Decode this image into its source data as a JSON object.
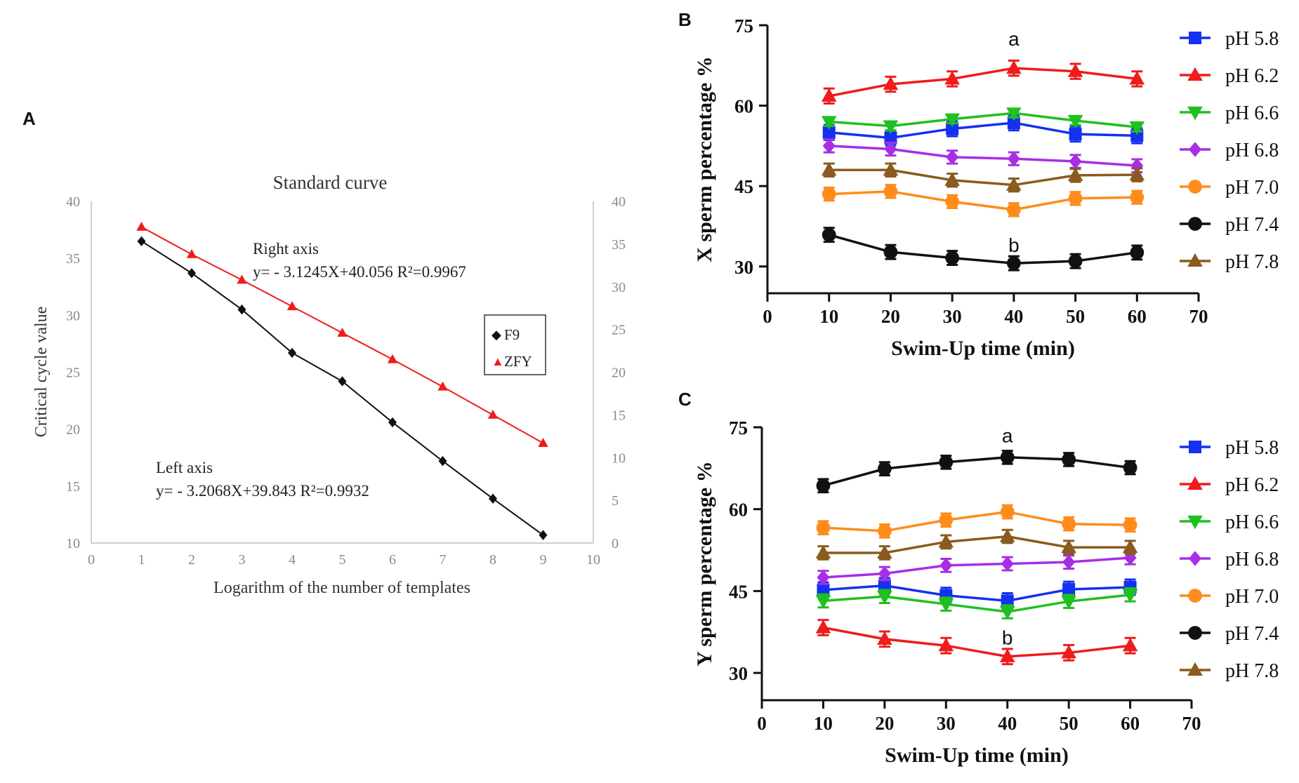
{
  "colors": {
    "blue": "#1430f0",
    "red": "#ee1c1c",
    "green": "#1fc01f",
    "purple": "#a62fe6",
    "orange": "#ff8c1a",
    "black": "#111111",
    "brown": "#8b5a1e"
  },
  "chart_data": [
    {
      "panel": "A",
      "type": "scatter",
      "title": "Standard curve",
      "xlabel": "Logarithm of the number of templates",
      "ylabel": "Critical cycle value",
      "xlim": [
        0,
        10
      ],
      "ylim_left": [
        10,
        40
      ],
      "ylim_right": [
        0,
        40
      ],
      "x_ticks": [
        "0",
        "1",
        "2",
        "3",
        "4",
        "5",
        "6",
        "7",
        "8",
        "9",
        "10"
      ],
      "y_left_ticks": [
        "10",
        "15",
        "20",
        "25",
        "30",
        "35",
        "40"
      ],
      "y_right_ticks": [
        "0",
        "5",
        "10",
        "15",
        "20",
        "25",
        "30",
        "35",
        "40"
      ],
      "legend": [
        "F9",
        "ZFY"
      ],
      "legend_markers": [
        "◆",
        "▲"
      ],
      "series": [
        {
          "name": "F9",
          "axis": "left",
          "color": "#111111",
          "marker": "diamond",
          "x": [
            1,
            2,
            3,
            4,
            5,
            6,
            7,
            8,
            9
          ],
          "y": [
            36.5,
            33.7,
            30.5,
            26.7,
            24.2,
            20.6,
            17.2,
            13.9,
            10.7
          ]
        },
        {
          "name": "ZFY",
          "axis": "right",
          "color": "#ee1c1c",
          "marker": "triangle",
          "x": [
            1,
            2,
            3,
            4,
            5,
            6,
            7,
            8,
            9
          ],
          "y": [
            37.0,
            33.8,
            30.8,
            27.7,
            24.6,
            21.5,
            18.3,
            15.0,
            11.7
          ]
        }
      ],
      "annotations": {
        "right_title": "Right axis",
        "right_eq": "y= - 3.1245X+40.056 R²=0.9967",
        "left_title": "Left axis",
        "left_eq": "y= - 3.2068X+39.843 R²=0.9932"
      }
    },
    {
      "panel": "B",
      "type": "line",
      "xlabel": "Swim-Up time (min)",
      "ylabel": "X sperm percentage %",
      "xlim": [
        0,
        70
      ],
      "ylim": [
        25,
        75
      ],
      "x_ticks": [
        "0",
        "10",
        "20",
        "30",
        "40",
        "50",
        "60",
        "70"
      ],
      "y_ticks": [
        "30",
        "45",
        "60",
        "75"
      ],
      "x": [
        10,
        20,
        30,
        40,
        50,
        60
      ],
      "annotations": [
        {
          "text": "a",
          "x": 40,
          "y": 72.5
        },
        {
          "text": "b",
          "x": 40,
          "y": 34
        }
      ],
      "series": [
        {
          "name": "pH 5.8",
          "color": "#1430f0",
          "marker": "square",
          "values": [
            55.0,
            54.0,
            55.7,
            56.8,
            54.7,
            54.4
          ],
          "err": 1.4
        },
        {
          "name": "pH 6.2",
          "color": "#ee1c1c",
          "marker": "triangle",
          "values": [
            61.8,
            64.0,
            65.0,
            67.0,
            66.4,
            65.0
          ],
          "err": 1.4
        },
        {
          "name": "pH 6.6",
          "color": "#1fc01f",
          "marker": "tri-down",
          "values": [
            57.0,
            56.2,
            57.5,
            58.6,
            57.2,
            56.0
          ],
          "err": 0.8
        },
        {
          "name": "pH 6.8",
          "color": "#a62fe6",
          "marker": "diamond",
          "values": [
            52.5,
            51.9,
            50.4,
            50.1,
            49.6,
            48.8
          ],
          "err": 1.2
        },
        {
          "name": "pH 7.0",
          "color": "#ff8c1a",
          "marker": "circle",
          "values": [
            43.5,
            44.0,
            42.1,
            40.6,
            42.7,
            42.9
          ],
          "err": 1.2
        },
        {
          "name": "pH 7.4",
          "color": "#111111",
          "marker": "circle",
          "values": [
            35.9,
            32.7,
            31.6,
            30.6,
            31.0,
            32.6
          ],
          "err": 1.3
        },
        {
          "name": "pH 7.8",
          "color": "#8b5a1e",
          "marker": "triangle",
          "values": [
            48.0,
            48.0,
            46.1,
            45.2,
            47.0,
            47.1
          ],
          "err": 1.2
        }
      ]
    },
    {
      "panel": "C",
      "type": "line",
      "xlabel": "Swim-Up time (min)",
      "ylabel": "Y sperm percentage %",
      "xlim": [
        0,
        70
      ],
      "ylim": [
        25,
        75
      ],
      "x_ticks": [
        "0",
        "10",
        "20",
        "30",
        "40",
        "50",
        "60",
        "70"
      ],
      "y_ticks": [
        "30",
        "45",
        "60",
        "75"
      ],
      "x": [
        10,
        20,
        30,
        40,
        50,
        60
      ],
      "annotations": [
        {
          "text": "a",
          "x": 40,
          "y": 73.5
        },
        {
          "text": "b",
          "x": 40,
          "y": 36.5
        }
      ],
      "series": [
        {
          "name": "pH 5.8",
          "color": "#1430f0",
          "marker": "square",
          "values": [
            45.2,
            46.0,
            44.2,
            43.2,
            45.3,
            45.7
          ],
          "err": 1.4
        },
        {
          "name": "pH 6.2",
          "color": "#ee1c1c",
          "marker": "triangle",
          "values": [
            38.3,
            36.2,
            35.0,
            33.0,
            33.7,
            35.0
          ],
          "err": 1.4
        },
        {
          "name": "pH 6.6",
          "color": "#1fc01f",
          "marker": "tri-down",
          "values": [
            43.2,
            44.0,
            42.6,
            41.2,
            43.1,
            44.3
          ],
          "err": 1.2
        },
        {
          "name": "pH 6.8",
          "color": "#a62fe6",
          "marker": "diamond",
          "values": [
            47.5,
            48.2,
            49.7,
            50.0,
            50.3,
            51.1
          ],
          "err": 1.2
        },
        {
          "name": "pH 7.0",
          "color": "#ff8c1a",
          "marker": "circle",
          "values": [
            56.6,
            56.0,
            58.0,
            59.5,
            57.3,
            57.1
          ],
          "err": 1.2
        },
        {
          "name": "pH 7.4",
          "color": "#111111",
          "marker": "circle",
          "values": [
            64.3,
            67.4,
            68.6,
            69.5,
            69.1,
            67.6
          ],
          "err": 1.2
        },
        {
          "name": "pH 7.8",
          "color": "#8b5a1e",
          "marker": "triangle",
          "values": [
            52.0,
            52.0,
            54.0,
            55.0,
            53.0,
            53.0
          ],
          "err": 1.2
        }
      ]
    }
  ],
  "panel_labels": {
    "a": "A",
    "b": "B",
    "c": "C"
  }
}
